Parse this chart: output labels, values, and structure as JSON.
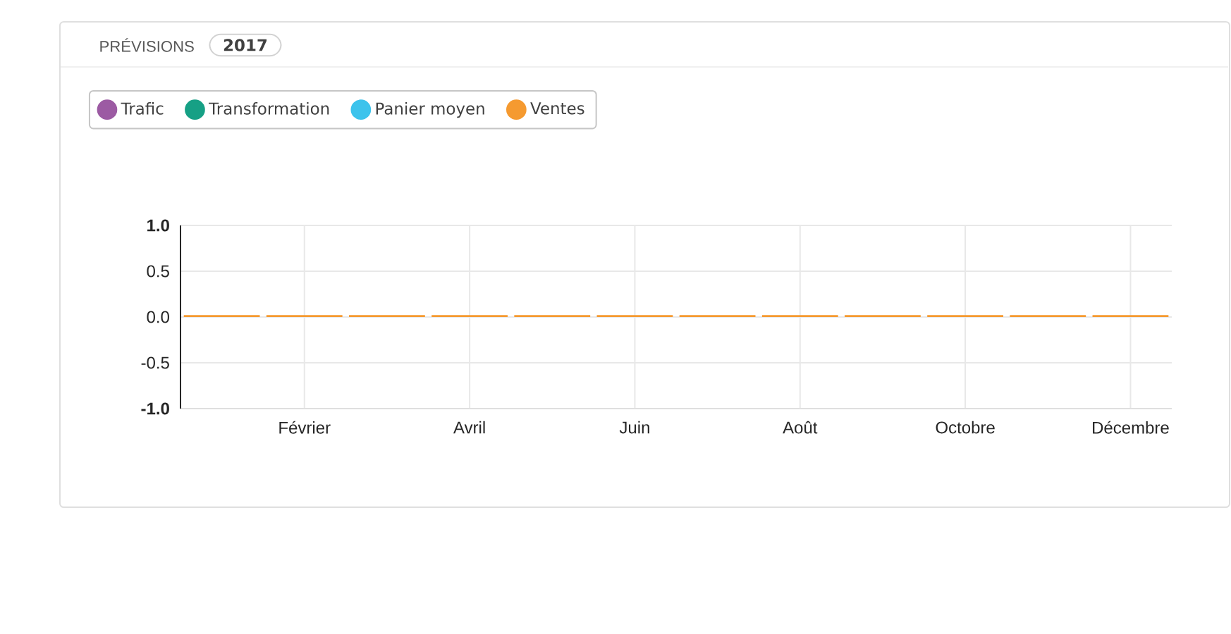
{
  "chart_data": {
    "type": "bar",
    "title": "PRÉVISIONS",
    "subtitle": "2017",
    "categories": [
      null,
      "Février",
      null,
      "Avril",
      null,
      "Juin",
      null,
      "Août",
      null,
      "Octobre",
      null,
      "Décembre"
    ],
    "series": [
      {
        "name": "Trafic",
        "color": "#9c5ba3",
        "values": [
          null,
          null,
          null,
          null,
          null,
          null,
          null,
          null,
          null,
          null,
          null,
          null
        ]
      },
      {
        "name": "Transformation",
        "color": "#16a085",
        "values": [
          null,
          null,
          null,
          null,
          null,
          null,
          null,
          null,
          null,
          null,
          null,
          null
        ]
      },
      {
        "name": "Panier moyen",
        "color": "#3cc3ec",
        "values": [
          null,
          null,
          null,
          null,
          null,
          null,
          null,
          null,
          null,
          null,
          null,
          null
        ]
      },
      {
        "name": "Ventes",
        "color": "#f59a30",
        "values": [
          0,
          0,
          0,
          0,
          0,
          0,
          0,
          0,
          0,
          0,
          0,
          0
        ]
      }
    ],
    "ylim": [
      -1,
      1
    ],
    "yticks": [
      {
        "value": 1,
        "label": "1.0"
      },
      0.5,
      {
        "value": 0,
        "label": "0.0"
      },
      -0.5,
      {
        "value": -1,
        "label": "-1.0"
      }
    ],
    "grid": true,
    "legend": "top left"
  }
}
